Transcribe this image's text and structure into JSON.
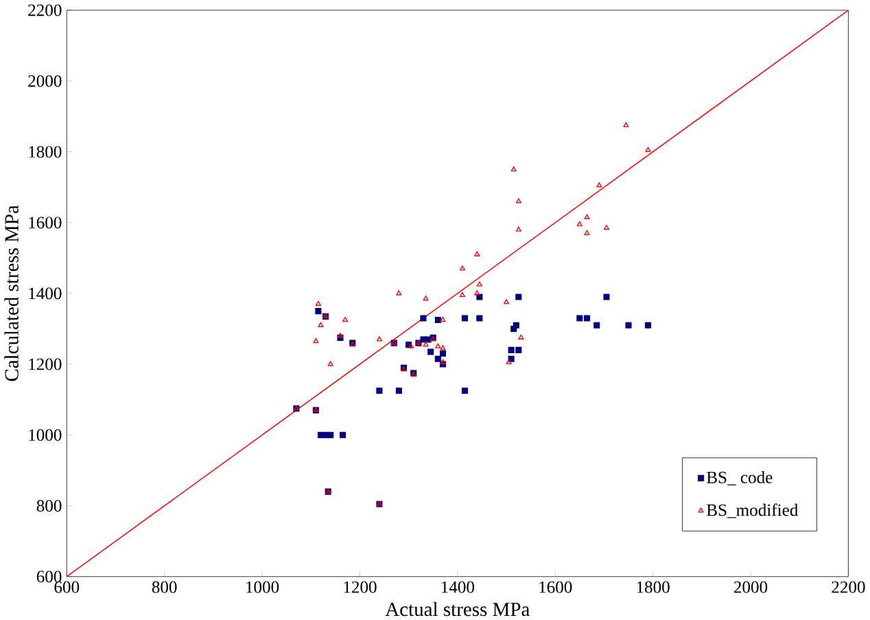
{
  "chart_data": {
    "type": "scatter",
    "xlabel": "Actual stress MPa",
    "ylabel": "Calculated stress MPa",
    "xlim": [
      600,
      2200
    ],
    "ylim": [
      600,
      2200
    ],
    "xticks": [
      600,
      800,
      1000,
      1200,
      1400,
      1600,
      1800,
      2000,
      2200
    ],
    "yticks": [
      600,
      800,
      1000,
      1200,
      1400,
      1600,
      1800,
      2000,
      2200
    ],
    "grid": false,
    "legend": "bottom right",
    "series": [
      {
        "name": "BS_ code",
        "marker": "square",
        "color": "#000080",
        "x": [
          1070,
          1110,
          1115,
          1120,
          1130,
          1140,
          1165,
          1135,
          1130,
          1160,
          1185,
          1240,
          1240,
          1270,
          1280,
          1290,
          1310,
          1300,
          1320,
          1330,
          1330,
          1340,
          1350,
          1345,
          1360,
          1370,
          1370,
          1415,
          1415,
          1445,
          1445,
          1510,
          1510,
          1515,
          1520,
          1525,
          1525,
          1650,
          1665,
          1685,
          1705,
          1750,
          1790,
          1360
        ],
        "values": [
          1075,
          1070,
          1350,
          1000,
          1000,
          1000,
          1000,
          840,
          1335,
          1275,
          1260,
          1125,
          805,
          1260,
          1125,
          1190,
          1175,
          1255,
          1260,
          1330,
          1270,
          1270,
          1275,
          1235,
          1215,
          1230,
          1200,
          1330,
          1125,
          1390,
          1330,
          1240,
          1215,
          1300,
          1310,
          1240,
          1390,
          1330,
          1330,
          1310,
          1390,
          1310,
          1310,
          1325
        ]
      },
      {
        "name": "BS_modified",
        "marker": "triangle",
        "color": "#ff0000",
        "x": [
          1070,
          1110,
          1115,
          1120,
          1110,
          1135,
          1140,
          1130,
          1160,
          1170,
          1185,
          1240,
          1240,
          1270,
          1280,
          1290,
          1305,
          1310,
          1320,
          1335,
          1335,
          1350,
          1360,
          1370,
          1370,
          1370,
          1410,
          1410,
          1440,
          1445,
          1500,
          1505,
          1515,
          1525,
          1525,
          1530,
          1650,
          1665,
          1665,
          1690,
          1705,
          1745,
          1790,
          1440
        ],
        "values": [
          1075,
          1070,
          1370,
          1310,
          1265,
          840,
          1200,
          1335,
          1280,
          1325,
          1255,
          805,
          1270,
          1260,
          1400,
          1185,
          1250,
          1170,
          1260,
          1385,
          1255,
          1270,
          1250,
          1325,
          1205,
          1245,
          1470,
          1395,
          1510,
          1425,
          1375,
          1205,
          1750,
          1660,
          1580,
          1275,
          1595,
          1615,
          1570,
          1705,
          1585,
          1875,
          1805,
          1400
        ]
      },
      {
        "type": "line",
        "marker": "none",
        "color": "#ff0000",
        "x": [
          600,
          2200
        ],
        "values": [
          600,
          2200
        ]
      }
    ]
  }
}
